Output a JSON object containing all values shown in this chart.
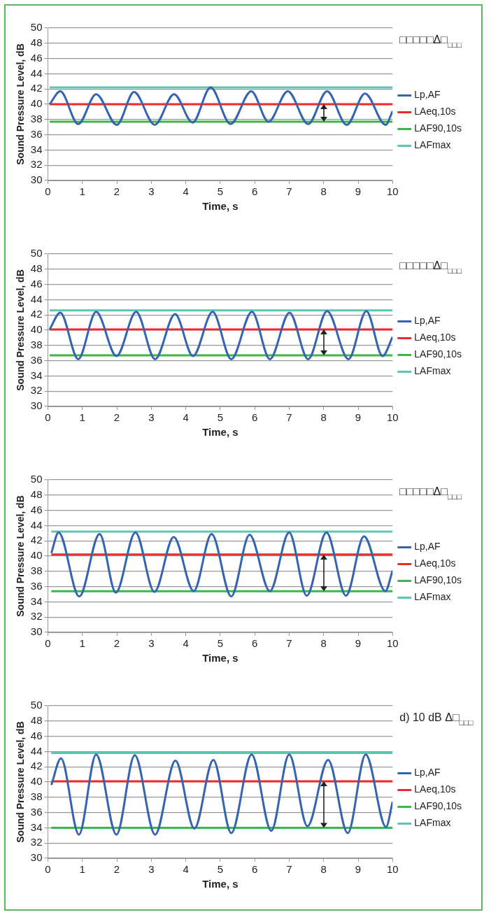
{
  "chart_data": [
    {
      "type": "line",
      "xlabel": "Time, s",
      "ylabel": "Sound Pressure Level, dB",
      "xlim": [
        0,
        10
      ],
      "xticks": [
        0,
        1,
        2,
        3,
        4,
        5,
        6,
        7,
        8,
        9,
        10
      ],
      "ylim": [
        30,
        50
      ],
      "yticks": [
        30,
        32,
        34,
        36,
        38,
        40,
        42,
        44,
        46,
        48,
        50
      ],
      "grid": "y",
      "legend": "right",
      "annotations": [
        "□□□□□Δ□$_{□□□}$"
      ],
      "series": [
        {
          "name": "Lp,AF",
          "color": "#3565b0",
          "x": [
            0.05,
            0.36,
            0.88,
            1.4,
            2.0,
            2.5,
            3.1,
            3.66,
            4.2,
            4.72,
            5.3,
            5.9,
            6.4,
            6.96,
            7.55,
            8.1,
            8.67,
            9.2,
            9.8,
            10
          ],
          "values": [
            40.0,
            41.7,
            37.4,
            41.3,
            37.3,
            41.6,
            37.3,
            41.3,
            37.6,
            42.2,
            37.4,
            41.7,
            37.7,
            41.7,
            37.4,
            41.7,
            37.3,
            41.4,
            37.3,
            39.1
          ]
        },
        {
          "name": "LAeq,10s",
          "color": "#ee2a2a",
          "x": [
            0.05,
            10
          ],
          "values": [
            40.0,
            40.0
          ]
        },
        {
          "name": "LAF90,10s",
          "color": "#3db64a",
          "x": [
            0.05,
            10
          ],
          "values": [
            37.7,
            37.7
          ]
        },
        {
          "name": "LAFmax",
          "color": "#5fc4b0",
          "x": [
            0.05,
            10
          ],
          "values": [
            42.2,
            42.2
          ]
        }
      ]
    },
    {
      "type": "line",
      "xlabel": "Time, s",
      "ylabel": "Sound Pressure Level, dB",
      "xlim": [
        0,
        10
      ],
      "xticks": [
        0,
        1,
        2,
        3,
        4,
        5,
        6,
        7,
        8,
        9,
        10
      ],
      "ylim": [
        30,
        50
      ],
      "yticks": [
        30,
        32,
        34,
        36,
        38,
        40,
        42,
        44,
        46,
        48,
        50
      ],
      "grid": "y",
      "legend": "right",
      "annotations": [
        "□□□□□Δ□$_{□□□}$"
      ],
      "series": [
        {
          "name": "Lp,AF",
          "color": "#3565b0",
          "x": [
            0.05,
            0.36,
            0.88,
            1.4,
            1.99,
            2.56,
            3.11,
            3.69,
            4.21,
            4.78,
            5.32,
            5.92,
            6.44,
            7.01,
            7.55,
            8.1,
            8.72,
            9.24,
            9.71,
            10
          ],
          "values": [
            40.1,
            42.3,
            36.2,
            42.4,
            36.6,
            42.4,
            36.2,
            42.1,
            36.6,
            42.4,
            36.2,
            42.4,
            36.2,
            42.3,
            36.2,
            42.5,
            36.2,
            42.5,
            36.6,
            39.1
          ]
        },
        {
          "name": "LAeq,10s",
          "color": "#ee2a2a",
          "x": [
            0.05,
            10
          ],
          "values": [
            40.1,
            40.1
          ]
        },
        {
          "name": "LAF90,10s",
          "color": "#3db64a",
          "x": [
            0.05,
            10
          ],
          "values": [
            36.7,
            36.7
          ]
        },
        {
          "name": "LAFmax",
          "color": "#5fc4b0",
          "x": [
            0.05,
            10
          ],
          "values": [
            42.6,
            42.6
          ]
        }
      ]
    },
    {
      "type": "line",
      "xlabel": "Time, s",
      "ylabel": "Sound Pressure Level, dB",
      "xlim": [
        0,
        10
      ],
      "xticks": [
        0,
        1,
        2,
        3,
        4,
        5,
        6,
        7,
        8,
        9,
        10
      ],
      "ylim": [
        30,
        50
      ],
      "yticks": [
        30,
        32,
        34,
        36,
        38,
        40,
        42,
        44,
        46,
        48,
        50
      ],
      "grid": "y",
      "legend": "right",
      "annotations": [
        "□□□□□Δ□$_{□□□}$"
      ],
      "series": [
        {
          "name": "Lp,AF",
          "color": "#3565b0",
          "x": [
            0.1,
            0.31,
            0.91,
            1.5,
            1.97,
            2.54,
            3.09,
            3.65,
            4.23,
            4.75,
            5.32,
            5.85,
            6.44,
            7.0,
            7.51,
            8.08,
            8.65,
            9.17,
            9.79,
            10
          ],
          "values": [
            40.4,
            43.1,
            34.7,
            42.9,
            35.2,
            43.1,
            35.3,
            42.5,
            35.4,
            42.9,
            34.7,
            42.8,
            35.4,
            43.1,
            34.8,
            43.1,
            34.8,
            42.6,
            35.4,
            38.1
          ]
        },
        {
          "name": "LAeq,10s",
          "color": "#ee2a2a",
          "x": [
            0.1,
            10
          ],
          "values": [
            40.2,
            40.2
          ]
        },
        {
          "name": "LAF90,10s",
          "color": "#3db64a",
          "x": [
            0.1,
            10
          ],
          "values": [
            35.4,
            35.4
          ]
        },
        {
          "name": "LAFmax",
          "color": "#5fc4b0",
          "x": [
            0.1,
            10
          ],
          "values": [
            43.2,
            43.2
          ]
        }
      ]
    },
    {
      "type": "line",
      "xlabel": "Time, s",
      "ylabel": "Sound Pressure Level, dB",
      "xlim": [
        0,
        10
      ],
      "xticks": [
        0,
        1,
        2,
        3,
        4,
        5,
        6,
        7,
        8,
        9,
        10
      ],
      "ylim": [
        30,
        50
      ],
      "yticks": [
        30,
        32,
        34,
        36,
        38,
        40,
        42,
        44,
        46,
        48,
        50
      ],
      "grid": "y",
      "legend": "right",
      "annotations": [
        "d) 10 dB Δ□$_{□□□}$"
      ],
      "series": [
        {
          "name": "Lp,AF",
          "color": "#3565b0",
          "x": [
            0.1,
            0.38,
            0.9,
            1.4,
            1.99,
            2.52,
            3.11,
            3.7,
            4.25,
            4.8,
            5.32,
            5.91,
            6.48,
            7.0,
            7.53,
            8.13,
            8.7,
            9.22,
            9.81,
            10
          ],
          "values": [
            39.6,
            43.1,
            33.1,
            43.6,
            33.1,
            43.5,
            33.1,
            42.8,
            33.9,
            42.9,
            33.3,
            43.6,
            33.6,
            43.6,
            34.2,
            42.9,
            33.3,
            43.6,
            34.1,
            37.4
          ]
        },
        {
          "name": "LAeq,10s",
          "color": "#ee2a2a",
          "x": [
            0.1,
            10
          ],
          "values": [
            40.1,
            40.1
          ]
        },
        {
          "name": "LAF90,10s",
          "color": "#3db64a",
          "x": [
            0.1,
            10
          ],
          "values": [
            34.0,
            34.0
          ]
        },
        {
          "name": "LAFmax",
          "color": "#5fc4b0",
          "x": [
            0.1,
            10
          ],
          "values": [
            43.8,
            43.8
          ]
        }
      ]
    }
  ]
}
